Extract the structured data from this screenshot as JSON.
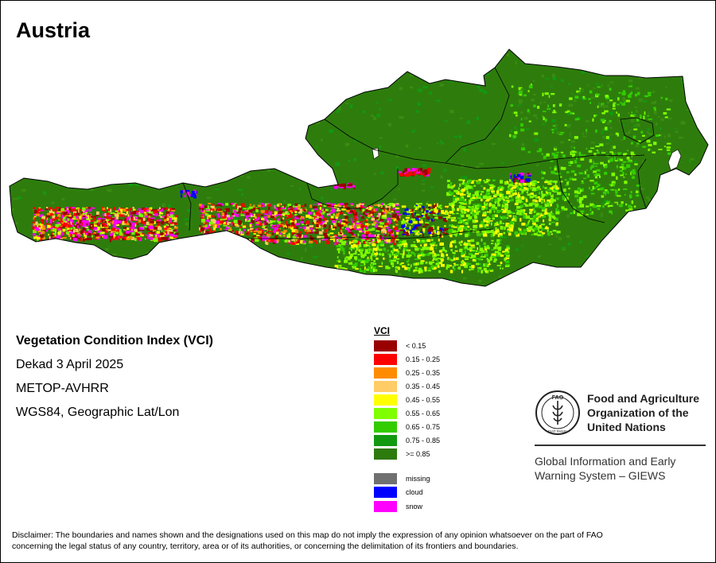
{
  "map": {
    "title": "Austria",
    "colors": {
      "land_base": "#2e7d0c",
      "land_alt": "#3a8c12",
      "border": "#000000",
      "lake": "#ffffff"
    }
  },
  "info": {
    "line1": "Vegetation Condition Index (VCI)",
    "line2": "Dekad 3 April 2025",
    "line3": "METOP-AVHRR",
    "line4": "WGS84, Geographic Lat/Lon"
  },
  "legend": {
    "title": "VCI",
    "classes": [
      {
        "label": "< 0.15",
        "color": "#990000"
      },
      {
        "label": "0.15 - 0.25",
        "color": "#ff0000"
      },
      {
        "label": "0.25 - 0.35",
        "color": "#ff8c00"
      },
      {
        "label": "0.35 - 0.45",
        "color": "#ffcc66"
      },
      {
        "label": "0.45 - 0.55",
        "color": "#ffff00"
      },
      {
        "label": "0.55 - 0.65",
        "color": "#7fff00"
      },
      {
        "label": "0.65 - 0.75",
        "color": "#33cc00"
      },
      {
        "label": "0.75 - 0.85",
        "color": "#119911"
      },
      {
        "label": ">= 0.85",
        "color": "#2d7a0d"
      }
    ],
    "extra": [
      {
        "label": "missing",
        "color": "#707070"
      },
      {
        "label": "cloud",
        "color": "#0000ff"
      },
      {
        "label": "snow",
        "color": "#ff00ff"
      }
    ]
  },
  "fao": {
    "logo_text": "FAO",
    "logo_motto": "FIAT PANIS",
    "name_line1": "Food and Agriculture",
    "name_line2": "Organization of the",
    "name_line3": "United Nations",
    "giews_line1": "Global Information and Early",
    "giews_line2": "Warning System – GIEWS"
  },
  "disclaimer": {
    "line1": "Disclaimer: The boundaries and names shown and the designations used on this map do not imply the expression of any opinion whatsoever on the part of FAO",
    "line2": "concerning the legal status of any country, territory, area or of its authorities, or concerning the delimitation of its frontiers and boundaries."
  }
}
